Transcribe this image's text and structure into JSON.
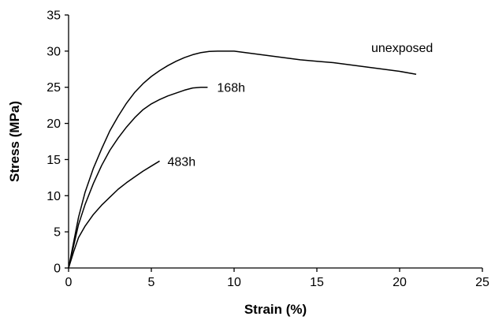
{
  "chart_data": {
    "type": "line",
    "xlabel": "Strain (%)",
    "ylabel": "Stress (MPa)",
    "xlim": [
      0,
      25
    ],
    "ylim": [
      0,
      35
    ],
    "xticks": [
      0,
      5,
      10,
      15,
      20,
      25
    ],
    "yticks": [
      0,
      5,
      10,
      15,
      20,
      25,
      30,
      35
    ],
    "grid": false,
    "legend": "none",
    "series": [
      {
        "name": "unexposed",
        "x": [
          0,
          0.3,
          0.6,
          1,
          1.5,
          2,
          2.5,
          3,
          3.5,
          4,
          4.5,
          5,
          5.5,
          6,
          6.5,
          7,
          7.5,
          8,
          8.5,
          9,
          10,
          11,
          12,
          13,
          14,
          15,
          16,
          17,
          18,
          19,
          20,
          21
        ],
        "y": [
          0,
          3.5,
          7,
          10.5,
          13.8,
          16.5,
          19,
          21,
          22.8,
          24.3,
          25.5,
          26.5,
          27.3,
          28,
          28.6,
          29.1,
          29.5,
          29.8,
          29.95,
          30,
          30,
          29.7,
          29.4,
          29.1,
          28.8,
          28.6,
          28.4,
          28.1,
          27.8,
          27.5,
          27.2,
          26.8
        ]
      },
      {
        "name": "168h",
        "x": [
          0,
          0.3,
          0.6,
          1,
          1.5,
          2,
          2.5,
          3,
          3.5,
          4,
          4.5,
          5,
          5.5,
          6,
          6.5,
          7,
          7.5,
          8,
          8.4
        ],
        "y": [
          0,
          3,
          6,
          8.8,
          11.7,
          14.2,
          16.3,
          18,
          19.5,
          20.8,
          21.9,
          22.7,
          23.3,
          23.8,
          24.2,
          24.6,
          24.9,
          25,
          25
        ]
      },
      {
        "name": "483h",
        "x": [
          0,
          0.3,
          0.6,
          1,
          1.5,
          2,
          2.5,
          3,
          3.5,
          4,
          4.5,
          5,
          5.5
        ],
        "y": [
          0,
          2.2,
          4.2,
          5.8,
          7.4,
          8.7,
          9.8,
          10.9,
          11.8,
          12.6,
          13.4,
          14.1,
          14.8
        ]
      }
    ],
    "annotations": [
      {
        "text": "unexposed",
        "series": "unexposed"
      },
      {
        "text": "168h",
        "series": "168h"
      },
      {
        "text": "483h",
        "series": "483h"
      }
    ]
  }
}
